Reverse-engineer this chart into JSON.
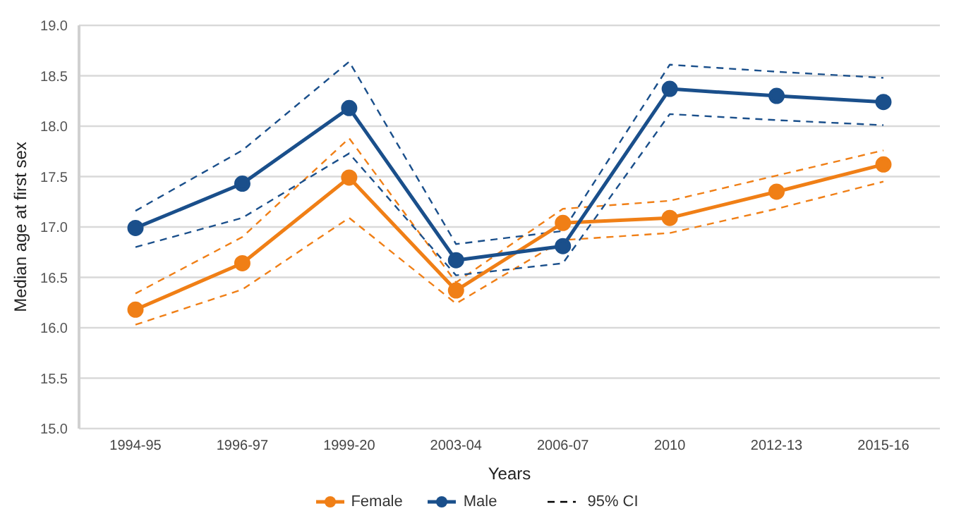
{
  "chart_data": {
    "type": "line",
    "xlabel": "Years",
    "ylabel": "Median age at first sex",
    "categories": [
      "1994-95",
      "1996-97",
      "1999-20",
      "2003-04",
      "2006-07",
      "2010",
      "2012-13",
      "2015-16"
    ],
    "series": [
      {
        "color": "#f07f16",
        "values": [
          16.34,
          16.9,
          17.88,
          16.45,
          17.18,
          17.26,
          17.51,
          17.76
        ],
        "line_style": "dashed",
        "marker": "none"
      },
      {
        "color": "#f07f16",
        "values": [
          16.03,
          16.38,
          17.09,
          16.24,
          16.87,
          16.94,
          17.18,
          17.45
        ],
        "line_style": "dashed",
        "marker": "none"
      },
      {
        "color": "#1a4f8b",
        "values": [
          17.16,
          17.76,
          18.64,
          16.83,
          16.96,
          18.61,
          18.54,
          18.48
        ],
        "line_style": "dashed",
        "marker": "none"
      },
      {
        "color": "#1a4f8b",
        "values": [
          16.8,
          17.09,
          17.73,
          16.52,
          16.64,
          18.12,
          18.06,
          18.01
        ],
        "line_style": "dashed",
        "marker": "none"
      },
      {
        "name": "Female",
        "color": "#f07f16",
        "values": [
          16.18,
          16.64,
          17.49,
          16.37,
          17.04,
          17.09,
          17.35,
          17.62
        ]
      },
      {
        "name": "Male",
        "color": "#1a4f8b",
        "values": [
          16.99,
          17.43,
          18.18,
          16.67,
          16.81,
          18.37,
          18.3,
          18.24
        ]
      }
    ],
    "annotations": [
      "95% CI"
    ],
    "ylim": [
      15,
      19
    ],
    "yticks": [
      {
        "value": 15,
        "label": "15.0"
      },
      {
        "value": 15.5,
        "label": "15.5"
      },
      {
        "value": 16,
        "label": "16.0"
      },
      {
        "value": 16.5,
        "label": "16.5"
      },
      {
        "value": 17,
        "label": "17.0"
      },
      {
        "value": 17.5,
        "label": "17.5"
      },
      {
        "value": 18,
        "label": "18.0"
      },
      {
        "value": 18.5,
        "label": "18.5"
      },
      {
        "value": 19,
        "label": "19.0"
      }
    ],
    "grid": "y",
    "legend": "bottom",
    "marker": "circle",
    "line_style": "solid"
  }
}
